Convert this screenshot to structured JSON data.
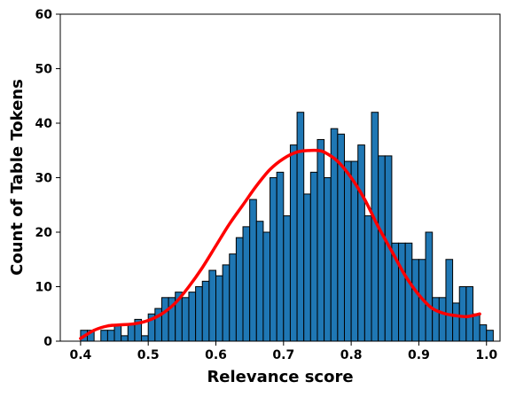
{
  "chart_data": {
    "type": "bar",
    "subtype": "histogram-with-density-curve",
    "title": "",
    "xlabel": "Relevance score",
    "ylabel": "Count of Table Tokens",
    "xlim": [
      0.37,
      1.02
    ],
    "ylim": [
      0,
      60
    ],
    "x_ticks": [
      "0.4",
      "0.5",
      "0.6",
      "0.7",
      "0.8",
      "0.9",
      "1.0"
    ],
    "y_ticks": [
      "0",
      "10",
      "20",
      "30",
      "40",
      "50",
      "60"
    ],
    "grid": false,
    "legend": null,
    "bar_color": "#1f77b4",
    "bar_edge_color": "#000000",
    "curve_color": "#ff0000",
    "bin_start": 0.4,
    "bin_width": 0.01,
    "counts": [
      2,
      2,
      0,
      2,
      2,
      3,
      1,
      3,
      4,
      1,
      5,
      6,
      8,
      8,
      9,
      8,
      9,
      10,
      11,
      13,
      12,
      14,
      16,
      19,
      21,
      26,
      22,
      20,
      30,
      31,
      23,
      36,
      42,
      27,
      31,
      37,
      30,
      39,
      38,
      33,
      33,
      36,
      23,
      42,
      34,
      34,
      18,
      18,
      18,
      15,
      15,
      20,
      8,
      8,
      15,
      7,
      10,
      10,
      5,
      3,
      2
    ],
    "curve": {
      "name": "",
      "x": [
        0.4,
        0.42,
        0.44,
        0.46,
        0.48,
        0.5,
        0.52,
        0.54,
        0.56,
        0.58,
        0.6,
        0.62,
        0.64,
        0.66,
        0.68,
        0.7,
        0.72,
        0.74,
        0.75,
        0.76,
        0.78,
        0.8,
        0.82,
        0.84,
        0.86,
        0.88,
        0.9,
        0.92,
        0.94,
        0.96,
        0.97,
        0.98,
        0.99
      ],
      "y": [
        0.5,
        2.0,
        2.8,
        3.0,
        3.2,
        3.8,
        5.0,
        7.0,
        10.0,
        13.5,
        17.5,
        21.5,
        25.0,
        28.5,
        31.5,
        33.5,
        34.7,
        35.0,
        35.0,
        34.7,
        33.0,
        30.0,
        26.0,
        21.0,
        16.5,
        12.0,
        8.5,
        6.0,
        5.0,
        4.6,
        4.5,
        4.7,
        5.0
      ]
    }
  }
}
